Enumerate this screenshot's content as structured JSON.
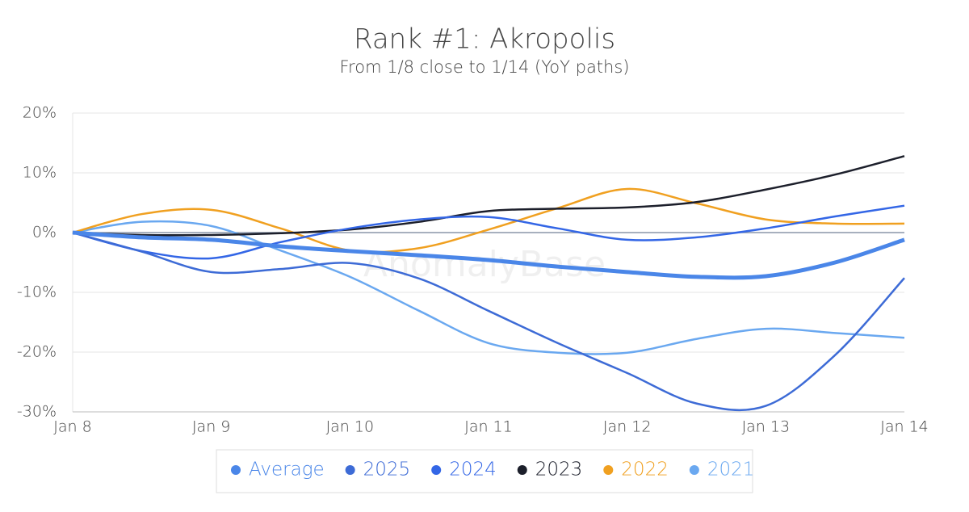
{
  "chart_data": {
    "type": "line",
    "title": "Rank #1: Akropolis",
    "subtitle": "From 1/8 close to 1/14 (YoY paths)",
    "watermark": "AnomalyBase",
    "categories": [
      "Jan 8",
      null,
      "Jan 9",
      null,
      "Jan 10",
      null,
      "Jan 11",
      null,
      "Jan 12",
      null,
      "Jan 13",
      null,
      "Jan 14"
    ],
    "ylim": [
      -30,
      20
    ],
    "yticks": [
      {
        "value": -30,
        "label": "-30%"
      },
      {
        "value": -20,
        "label": "-20%"
      },
      {
        "value": -10,
        "label": "-10%"
      },
      {
        "value": 0,
        "label": "0%"
      },
      {
        "value": 10,
        "label": "10%"
      },
      {
        "value": 20,
        "label": "20%"
      }
    ],
    "grid": true,
    "legend": "bottom",
    "series": [
      {
        "name": "Average",
        "color": "#4a86e8",
        "values": [
          0,
          -0.8,
          -1.2,
          -2.3,
          -3.1,
          -3.8,
          -4.6,
          -5.7,
          -6.6,
          -7.4,
          -7.3,
          -5,
          -1.2
        ]
      },
      {
        "name": "2025",
        "color": "#3d6bd6",
        "values": [
          0,
          -3.2,
          -6.6,
          -6.1,
          -5.1,
          -7.7,
          -13.1,
          -18.5,
          -23.5,
          -28.6,
          -29,
          -20.5,
          -7.6
        ]
      },
      {
        "name": "2024",
        "color": "#3366e6",
        "values": [
          0,
          -3.1,
          -4.3,
          -1.6,
          0.7,
          2.2,
          2.6,
          0.7,
          -1.2,
          -0.8,
          0.7,
          2.7,
          4.5
        ]
      },
      {
        "name": "2023",
        "color": "#1c1f2b",
        "values": [
          0,
          -0.4,
          -0.4,
          -0.1,
          0.5,
          1.8,
          3.6,
          4,
          4.2,
          5.1,
          7.2,
          9.7,
          12.8
        ]
      },
      {
        "name": "2022",
        "color": "#f0a020",
        "values": [
          0,
          3.1,
          3.8,
          0.7,
          -3,
          -2.6,
          0.5,
          4.1,
          7.3,
          4.9,
          2.2,
          1.5,
          1.5
        ]
      },
      {
        "name": "2021",
        "color": "#6aa8f0",
        "values": [
          0,
          1.8,
          1.1,
          -3,
          -7.4,
          -13.1,
          -18.5,
          -20.1,
          -20.1,
          -17.8,
          -16.1,
          -16.8,
          -17.6
        ]
      }
    ]
  }
}
